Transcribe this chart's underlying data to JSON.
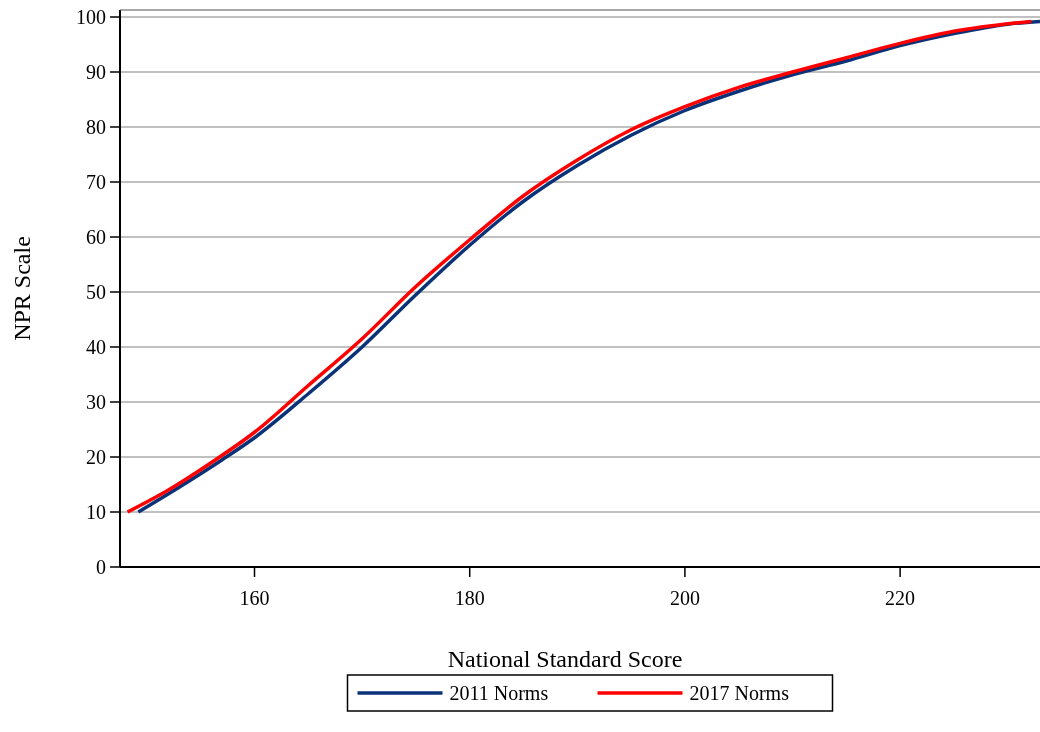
{
  "chart_data": {
    "type": "line",
    "xlabel": "National Standard Score",
    "ylabel": "NPR Scale",
    "xlim": [
      147.5,
      233
    ],
    "xticks": [
      160,
      180,
      200,
      220
    ],
    "ylim": [
      0,
      100
    ],
    "yticks": [
      0,
      10,
      20,
      30,
      40,
      50,
      60,
      70,
      80,
      90,
      100
    ],
    "grid": "y",
    "legend": "bottom",
    "marker": "none",
    "line_style": "solid",
    "series": [
      {
        "name": "2011 Norms",
        "color": "#0a3278",
        "x": [
          149.2,
          153,
          157,
          160,
          165,
          170,
          175,
          180,
          185,
          190,
          195,
          200,
          205,
          210,
          215,
          220,
          225,
          230,
          233
        ],
        "values": [
          10,
          14.5,
          19.5,
          23.5,
          31.5,
          40,
          49.5,
          58.5,
          66.5,
          73,
          78.5,
          83,
          86.5,
          89.5,
          92,
          94.8,
          97,
          98.7,
          99.2
        ]
      },
      {
        "name": "2017 Norms",
        "color": "#ff0000",
        "x": [
          148.2,
          152,
          156,
          160,
          165,
          170,
          175,
          180,
          185,
          190,
          195,
          200,
          205,
          210,
          215,
          220,
          225,
          232.2
        ],
        "values": [
          10,
          14,
          19,
          24.5,
          33,
          41.5,
          51,
          59.5,
          67.5,
          74,
          79.5,
          83.7,
          87.2,
          90,
          92.6,
          95.2,
          97.4,
          99.2
        ]
      }
    ]
  }
}
